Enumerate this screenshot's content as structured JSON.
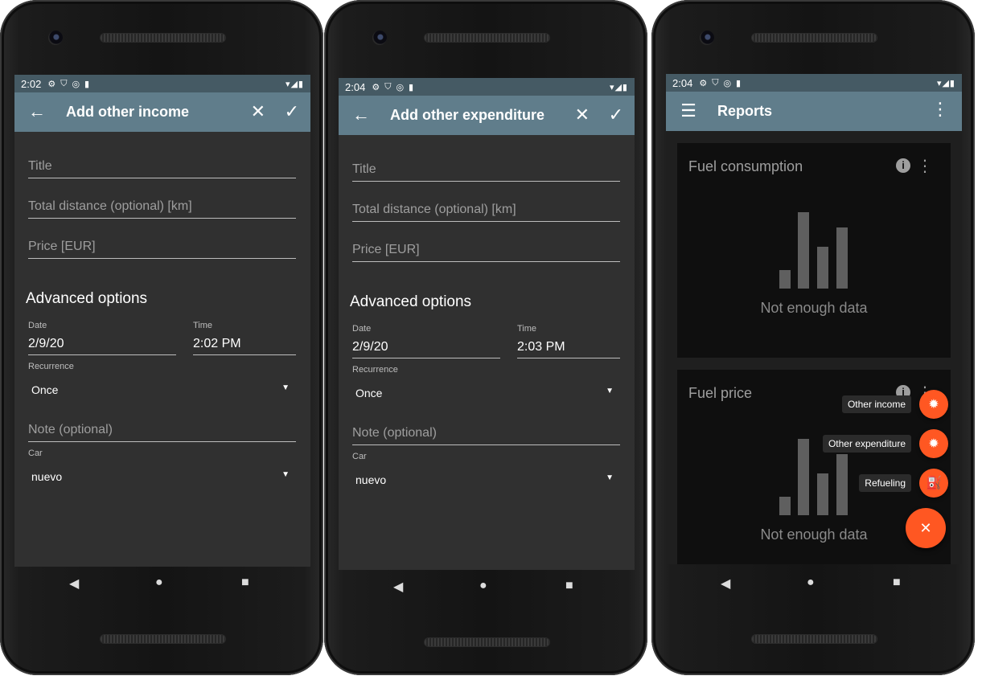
{
  "colors": {
    "status_bar": "#455a64",
    "app_bar": "#607d8b",
    "background": "#303030",
    "accent_fab": "#ff5722"
  },
  "screen1": {
    "status_time": "2:02",
    "title": "Add other income",
    "fields": {
      "title": "Title",
      "distance": "Total distance (optional) [km]",
      "price": "Price [EUR]"
    },
    "advanced_title": "Advanced options",
    "date_label": "Date",
    "date_value": "2/9/20",
    "time_label": "Time",
    "time_value": "2:02 PM",
    "recurrence_label": "Recurrence",
    "recurrence_value": "Once",
    "note": "Note (optional)",
    "car_label": "Car",
    "car_value": "nuevo"
  },
  "screen2": {
    "status_time": "2:04",
    "title": "Add other expenditure",
    "fields": {
      "title": "Title",
      "distance": "Total distance (optional) [km]",
      "price": "Price [EUR]"
    },
    "advanced_title": "Advanced options",
    "date_label": "Date",
    "date_value": "2/9/20",
    "time_label": "Time",
    "time_value": "2:03 PM",
    "recurrence_label": "Recurrence",
    "recurrence_value": "Once",
    "note": "Note (optional)",
    "car_label": "Car",
    "car_value": "nuevo"
  },
  "screen3": {
    "status_time": "2:04",
    "title": "Reports",
    "cards": [
      {
        "title": "Fuel consumption",
        "empty_text": "Not enough data"
      },
      {
        "title": "Fuel price",
        "empty_text": "Not enough data"
      }
    ],
    "fab_actions": [
      {
        "label": "Other income",
        "icon": "gear-icon"
      },
      {
        "label": "Other expenditure",
        "icon": "gear-icon"
      },
      {
        "label": "Refueling",
        "icon": "fuel-pump-icon"
      }
    ],
    "fab_close_icon": "close-icon"
  }
}
